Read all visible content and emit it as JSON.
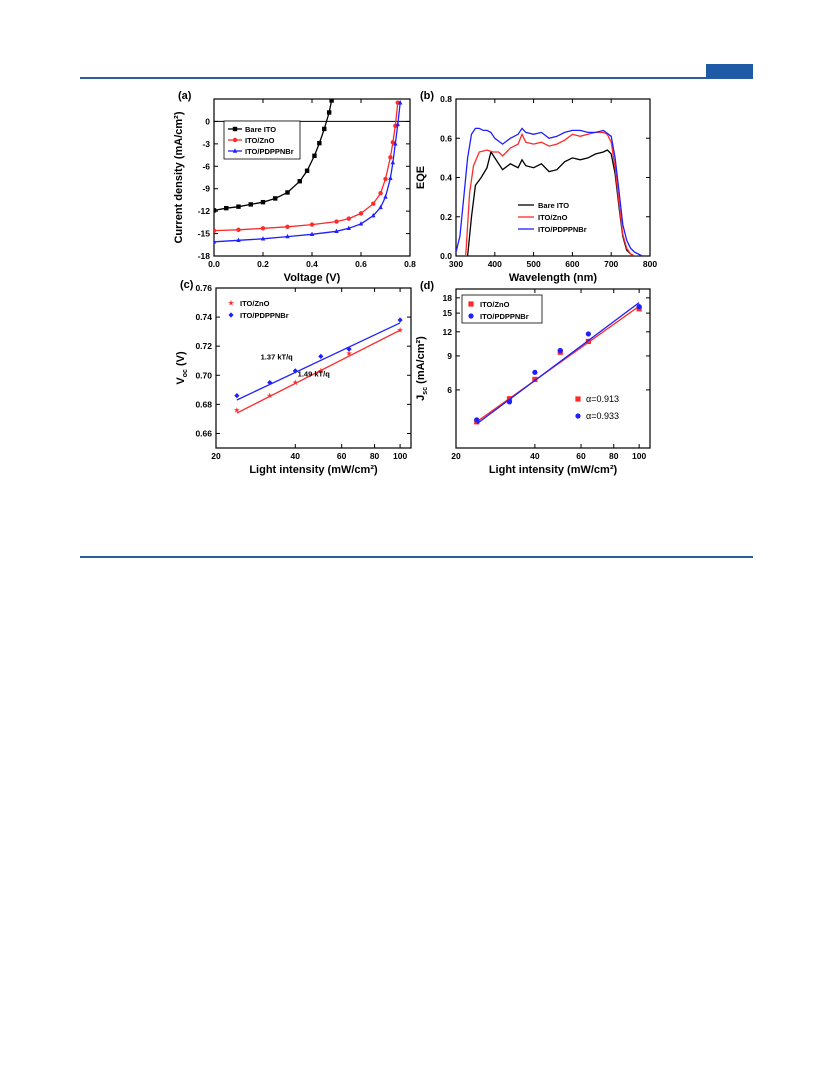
{
  "colors": {
    "black": "#000000",
    "red": "#ff2a2a",
    "blue": "#1f1fff",
    "frame_rule": "#2a5f9e",
    "tab": "#1f5aa6"
  },
  "chart_data": [
    {
      "id": "a",
      "panel_label": "(a)",
      "type": "line",
      "xlabel": "Voltage (V)",
      "ylabel": "Current density (mA/cm²)",
      "xlim": [
        0.0,
        0.8
      ],
      "ylim": [
        -18,
        3
      ],
      "xticks": [
        0.0,
        0.2,
        0.4,
        0.6,
        0.8
      ],
      "xtick_labels": [
        "0.0",
        "0.2",
        "0.4",
        "0.6",
        "0.8"
      ],
      "yticks": [
        0,
        -3,
        -6,
        -9,
        -12,
        -15,
        -18
      ],
      "ytick_labels": [
        "0",
        "-3",
        "-6",
        "-9",
        "-12",
        "-15",
        "-18"
      ],
      "zero_line": true,
      "legend_position": "top-left",
      "series": [
        {
          "name": "Bare ITO",
          "color": "#000000",
          "marker": "square",
          "x": [
            0.0,
            0.05,
            0.1,
            0.15,
            0.2,
            0.25,
            0.3,
            0.35,
            0.38,
            0.41,
            0.43,
            0.45,
            0.47,
            0.48
          ],
          "y": [
            -11.9,
            -11.6,
            -11.4,
            -11.1,
            -10.8,
            -10.3,
            -9.5,
            -8.0,
            -6.6,
            -4.6,
            -2.9,
            -1.0,
            1.2,
            2.8
          ]
        },
        {
          "name": "ITO/ZnO",
          "color": "#ff2a2a",
          "marker": "circle",
          "x": [
            0.0,
            0.1,
            0.2,
            0.3,
            0.4,
            0.5,
            0.55,
            0.6,
            0.65,
            0.68,
            0.7,
            0.72,
            0.73,
            0.74,
            0.75
          ],
          "y": [
            -14.6,
            -14.5,
            -14.3,
            -14.1,
            -13.8,
            -13.4,
            -13.0,
            -12.3,
            -11.0,
            -9.6,
            -7.7,
            -4.8,
            -2.8,
            -0.6,
            2.5
          ]
        },
        {
          "name": "ITO/PDPPNBr",
          "color": "#1f1fff",
          "marker": "triangle",
          "x": [
            0.0,
            0.1,
            0.2,
            0.3,
            0.4,
            0.5,
            0.55,
            0.6,
            0.65,
            0.68,
            0.7,
            0.72,
            0.73,
            0.74,
            0.75,
            0.76
          ],
          "y": [
            -16.1,
            -15.9,
            -15.7,
            -15.4,
            -15.1,
            -14.7,
            -14.3,
            -13.7,
            -12.6,
            -11.5,
            -10.1,
            -7.6,
            -5.5,
            -3.0,
            -0.4,
            2.5
          ]
        }
      ]
    },
    {
      "id": "b",
      "panel_label": "(b)",
      "type": "line",
      "xlabel": "Wavelength (nm)",
      "ylabel": "EQE",
      "xlim": [
        300,
        800
      ],
      "ylim": [
        0.0,
        0.8
      ],
      "xticks": [
        300,
        400,
        500,
        600,
        700,
        800
      ],
      "xtick_labels": [
        "300",
        "400",
        "500",
        "600",
        "700",
        "800"
      ],
      "yticks": [
        0.0,
        0.2,
        0.4,
        0.6,
        0.8
      ],
      "ytick_labels": [
        "0.0",
        "0.2",
        "0.4",
        "0.6",
        "0.8"
      ],
      "legend_position": "bottom-center",
      "series": [
        {
          "name": "Bare ITO",
          "color": "#000000",
          "x": [
            330,
            340,
            350,
            365,
            380,
            390,
            400,
            420,
            440,
            460,
            470,
            480,
            500,
            520,
            540,
            560,
            580,
            600,
            620,
            640,
            660,
            680,
            690,
            700,
            710,
            720,
            730,
            740,
            750,
            760,
            770
          ],
          "y": [
            0.0,
            0.2,
            0.36,
            0.4,
            0.45,
            0.53,
            0.5,
            0.44,
            0.47,
            0.45,
            0.49,
            0.46,
            0.45,
            0.47,
            0.43,
            0.44,
            0.48,
            0.5,
            0.49,
            0.5,
            0.52,
            0.53,
            0.54,
            0.52,
            0.42,
            0.25,
            0.1,
            0.03,
            0.01,
            0.0,
            0.0
          ]
        },
        {
          "name": "ITO/ZnO",
          "color": "#ff2a2a",
          "x": [
            325,
            335,
            345,
            360,
            380,
            395,
            410,
            420,
            440,
            460,
            470,
            480,
            500,
            520,
            540,
            560,
            580,
            600,
            620,
            640,
            660,
            680,
            690,
            700,
            710,
            720,
            730,
            740,
            750,
            760,
            770
          ],
          "y": [
            0.0,
            0.32,
            0.46,
            0.53,
            0.54,
            0.53,
            0.53,
            0.51,
            0.55,
            0.57,
            0.62,
            0.58,
            0.57,
            0.58,
            0.56,
            0.57,
            0.59,
            0.62,
            0.61,
            0.62,
            0.63,
            0.63,
            0.62,
            0.58,
            0.45,
            0.27,
            0.11,
            0.04,
            0.01,
            0.0,
            0.0
          ]
        },
        {
          "name": "ITO/PDPPNBr",
          "color": "#1f1fff",
          "x": [
            300,
            310,
            320,
            330,
            340,
            350,
            360,
            370,
            380,
            390,
            400,
            420,
            440,
            460,
            470,
            480,
            500,
            520,
            540,
            560,
            580,
            600,
            620,
            640,
            660,
            680,
            700,
            710,
            720,
            730,
            740,
            750,
            760,
            770,
            780
          ],
          "y": [
            0.02,
            0.1,
            0.3,
            0.5,
            0.62,
            0.65,
            0.65,
            0.64,
            0.64,
            0.63,
            0.6,
            0.57,
            0.6,
            0.62,
            0.65,
            0.63,
            0.62,
            0.63,
            0.6,
            0.61,
            0.63,
            0.64,
            0.64,
            0.63,
            0.63,
            0.64,
            0.61,
            0.5,
            0.33,
            0.16,
            0.08,
            0.04,
            0.02,
            0.01,
            0.0
          ]
        }
      ]
    },
    {
      "id": "c",
      "panel_label": "(c)",
      "type": "scatter",
      "xlabel": "Light intensity (mW/cm²)",
      "ylabel": "Vₒₓ (V)",
      "ylabel_main": "V",
      "ylabel_sub": "oc",
      "ylabel_rest": " (V)",
      "x_scale": "log",
      "xlim": [
        20,
        110
      ],
      "ylim": [
        0.65,
        0.76
      ],
      "xticks": [
        20,
        40,
        60,
        80,
        100
      ],
      "xtick_labels": [
        "20",
        "40",
        "60",
        "80",
        "100"
      ],
      "yticks": [
        0.66,
        0.68,
        0.7,
        0.72,
        0.74,
        0.76
      ],
      "ytick_labels": [
        "0.66",
        "0.68",
        "0.70",
        "0.72",
        "0.74",
        "0.76"
      ],
      "legend_position": "top-left",
      "annotations": [
        {
          "text": "1.37 kT/q",
          "x": 34,
          "y": 0.711
        },
        {
          "text": "1.49 kT/q",
          "x": 47,
          "y": 0.699
        }
      ],
      "series": [
        {
          "name": "ITO/ZnO",
          "color": "#ff2a2a",
          "marker": "star",
          "x": [
            24,
            32,
            40,
            50,
            64,
            100
          ],
          "y": [
            0.676,
            0.686,
            0.695,
            0.703,
            0.715,
            0.731
          ],
          "fit": {
            "x": [
              24,
              100
            ],
            "y": [
              0.674,
              0.731
            ]
          }
        },
        {
          "name": "ITO/PDPPNBr",
          "color": "#1f1fff",
          "marker": "diamond",
          "x": [
            24,
            32,
            40,
            50,
            64,
            100
          ],
          "y": [
            0.686,
            0.695,
            0.703,
            0.713,
            0.718,
            0.738
          ],
          "fit": {
            "x": [
              24,
              100
            ],
            "y": [
              0.683,
              0.736
            ]
          }
        }
      ]
    },
    {
      "id": "d",
      "panel_label": "(d)",
      "type": "scatter",
      "xlabel": "Light intensity (mW/cm²)",
      "ylabel": "Jₛᴄ (mA/cm²)",
      "ylabel_main": "J",
      "ylabel_sub": "sc",
      "ylabel_rest": " (mA/cm²)",
      "x_scale": "log",
      "y_scale": "log",
      "xlim": [
        20,
        110
      ],
      "ylim": [
        3,
        20
      ],
      "xticks": [
        20,
        40,
        60,
        80,
        100
      ],
      "xtick_labels": [
        "20",
        "40",
        "60",
        "80",
        "100"
      ],
      "yticks": [
        6,
        9,
        12,
        15,
        18
      ],
      "ytick_labels": [
        "6",
        "9",
        "12",
        "15",
        "18"
      ],
      "legend_position": "top-left",
      "annotations": [
        {
          "text": "α=0.913",
          "color": "#ff2a2a",
          "marker": "square"
        },
        {
          "text": "α=0.933",
          "color": "#1f1fff",
          "marker": "circle"
        }
      ],
      "series": [
        {
          "name": "ITO/ZnO",
          "color": "#ff2a2a",
          "marker": "square",
          "x": [
            24,
            32,
            40,
            50,
            64,
            100
          ],
          "y": [
            4.1,
            5.4,
            6.8,
            9.4,
            10.7,
            15.8
          ],
          "fit": {
            "x": [
              24,
              100
            ],
            "y": [
              4.1,
              16.3
            ]
          }
        },
        {
          "name": "ITO/PDPPNBr",
          "color": "#1f1fff",
          "marker": "circle",
          "x": [
            24,
            32,
            40,
            50,
            64,
            100
          ],
          "y": [
            4.2,
            5.2,
            7.4,
            9.6,
            11.7,
            16.2
          ],
          "fit": {
            "x": [
              24,
              100
            ],
            "y": [
              4.0,
              17.0
            ]
          }
        }
      ]
    }
  ]
}
